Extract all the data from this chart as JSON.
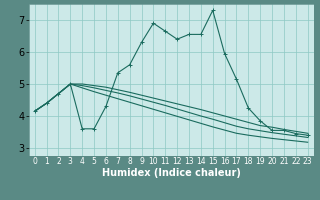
{
  "xlabel": "Humidex (Indice chaleur)",
  "bg_color": "#cce9e8",
  "plot_bg_color": "#cce9e8",
  "bottom_bar_color": "#5a8a85",
  "line_color": "#1a6b5e",
  "grid_color": "#8ec8c4",
  "xlim": [
    -0.5,
    23.5
  ],
  "ylim": [
    2.75,
    7.5
  ],
  "yticks": [
    3,
    4,
    5,
    6,
    7
  ],
  "xticks": [
    0,
    1,
    2,
    3,
    4,
    5,
    6,
    7,
    8,
    9,
    10,
    11,
    12,
    13,
    14,
    15,
    16,
    17,
    18,
    19,
    20,
    21,
    22,
    23
  ],
  "series0": [
    4.15,
    4.4,
    4.7,
    5.0,
    3.6,
    3.6,
    4.3,
    5.35,
    5.6,
    6.3,
    6.9,
    6.65,
    6.4,
    6.55,
    6.55,
    7.3,
    5.95,
    5.15,
    4.25,
    3.85,
    3.55,
    3.55,
    3.45,
    3.4
  ],
  "series1": [
    4.15,
    4.4,
    4.7,
    5.0,
    5.0,
    4.95,
    4.9,
    4.82,
    4.74,
    4.65,
    4.56,
    4.47,
    4.38,
    4.29,
    4.2,
    4.1,
    4.0,
    3.9,
    3.8,
    3.7,
    3.65,
    3.58,
    3.52,
    3.46
  ],
  "series2": [
    4.15,
    4.4,
    4.7,
    5.0,
    4.95,
    4.88,
    4.8,
    4.72,
    4.63,
    4.53,
    4.43,
    4.33,
    4.22,
    4.11,
    4.0,
    3.9,
    3.79,
    3.68,
    3.6,
    3.54,
    3.48,
    3.43,
    3.38,
    3.33
  ],
  "series3": [
    4.15,
    4.4,
    4.7,
    5.0,
    4.88,
    4.76,
    4.65,
    4.54,
    4.43,
    4.32,
    4.21,
    4.1,
    3.99,
    3.88,
    3.77,
    3.66,
    3.56,
    3.46,
    3.4,
    3.35,
    3.3,
    3.26,
    3.22,
    3.18
  ],
  "xlabel_fontsize": 7,
  "ytick_fontsize": 7,
  "xtick_fontsize": 5.5
}
